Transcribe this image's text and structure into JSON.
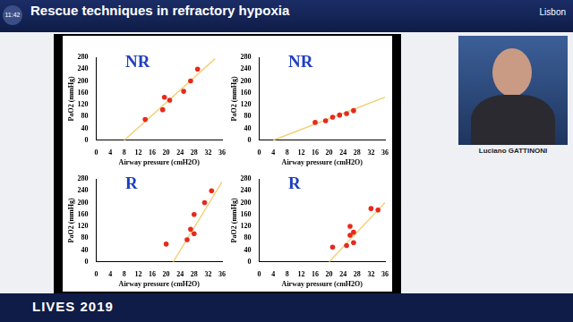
{
  "header": {
    "title": "Rescue techniques in refractory hypoxia",
    "clock": "11:42",
    "city": "Lisbon",
    "speaker": "Luciano GATTINONI",
    "event": "LIVES 2019"
  },
  "chart_data": [
    {
      "type": "scatter",
      "title": "NR",
      "x_label": "Airway pressure (cmH2O)",
      "y_label": "PaO2 (mmHg)",
      "xlim": [
        0,
        36
      ],
      "xticks": [
        0,
        4,
        8,
        12,
        16,
        20,
        24,
        28,
        32,
        36
      ],
      "ylim": [
        0,
        280
      ],
      "yticks": [
        0,
        40,
        80,
        120,
        160,
        200,
        240,
        280
      ],
      "grid": false,
      "series": [
        {
          "type": "scatter",
          "color": "#e8291c",
          "marker": "circle",
          "line_style": "none",
          "x": [
            14,
            19,
            19.5,
            21,
            25,
            27,
            29
          ],
          "values": [
            70,
            103,
            145,
            135,
            165,
            200,
            240
          ]
        },
        {
          "type": "line",
          "color": "#f2d27a",
          "marker": "none",
          "line_style": "solid",
          "x": [
            8,
            34
          ],
          "values": [
            0,
            275
          ]
        }
      ]
    },
    {
      "type": "scatter",
      "title": "NR",
      "x_label": "Airway pressure (cmH2O)",
      "y_label": "PaO2 (mmHg)",
      "xlim": [
        0,
        36
      ],
      "xticks": [
        0,
        4,
        8,
        12,
        16,
        20,
        24,
        28,
        32,
        36
      ],
      "ylim": [
        0,
        280
      ],
      "yticks": [
        0,
        40,
        80,
        120,
        160,
        200,
        240,
        280
      ],
      "grid": false,
      "series": [
        {
          "type": "scatter",
          "color": "#e8291c",
          "marker": "circle",
          "line_style": "none",
          "x": [
            16,
            19,
            21,
            23,
            25,
            27
          ],
          "values": [
            60,
            66,
            78,
            85,
            90,
            100
          ]
        },
        {
          "type": "line",
          "color": "#f2d27a",
          "marker": "none",
          "line_style": "solid",
          "x": [
            4,
            36
          ],
          "values": [
            0,
            145
          ]
        }
      ]
    },
    {
      "type": "scatter",
      "title": "R",
      "x_label": "Airway pressure (cmH2O)",
      "y_label": "PaO2 (mmHg)",
      "xlim": [
        0,
        36
      ],
      "xticks": [
        0,
        4,
        8,
        12,
        16,
        20,
        24,
        28,
        32,
        36
      ],
      "ylim": [
        0,
        280
      ],
      "yticks": [
        0,
        40,
        80,
        120,
        160,
        200,
        240,
        280
      ],
      "grid": false,
      "series": [
        {
          "type": "scatter",
          "color": "#e8291c",
          "marker": "circle",
          "line_style": "none",
          "x": [
            20,
            26,
            27,
            28,
            28,
            31,
            33
          ],
          "values": [
            60,
            75,
            110,
            95,
            160,
            200,
            240
          ]
        },
        {
          "type": "line",
          "color": "#f2d27a",
          "marker": "none",
          "line_style": "solid",
          "x": [
            22,
            36
          ],
          "values": [
            0,
            270
          ]
        }
      ]
    },
    {
      "type": "scatter",
      "title": "R",
      "x_label": "Airway pressure (cmH2O)",
      "y_label": "PaO2 (mmHg)",
      "xlim": [
        0,
        36
      ],
      "xticks": [
        0,
        4,
        8,
        12,
        16,
        20,
        24,
        28,
        32,
        36
      ],
      "ylim": [
        0,
        280
      ],
      "yticks": [
        0,
        40,
        80,
        120,
        160,
        200,
        240,
        280
      ],
      "grid": false,
      "series": [
        {
          "type": "scatter",
          "color": "#e8291c",
          "marker": "circle",
          "line_style": "none",
          "x": [
            21,
            25,
            26,
            26,
            27,
            27,
            32,
            34
          ],
          "values": [
            50,
            55,
            90,
            120,
            65,
            100,
            180,
            175
          ]
        },
        {
          "type": "line",
          "color": "#f2d27a",
          "marker": "none",
          "line_style": "solid",
          "x": [
            20,
            36
          ],
          "values": [
            0,
            200
          ]
        }
      ]
    }
  ]
}
